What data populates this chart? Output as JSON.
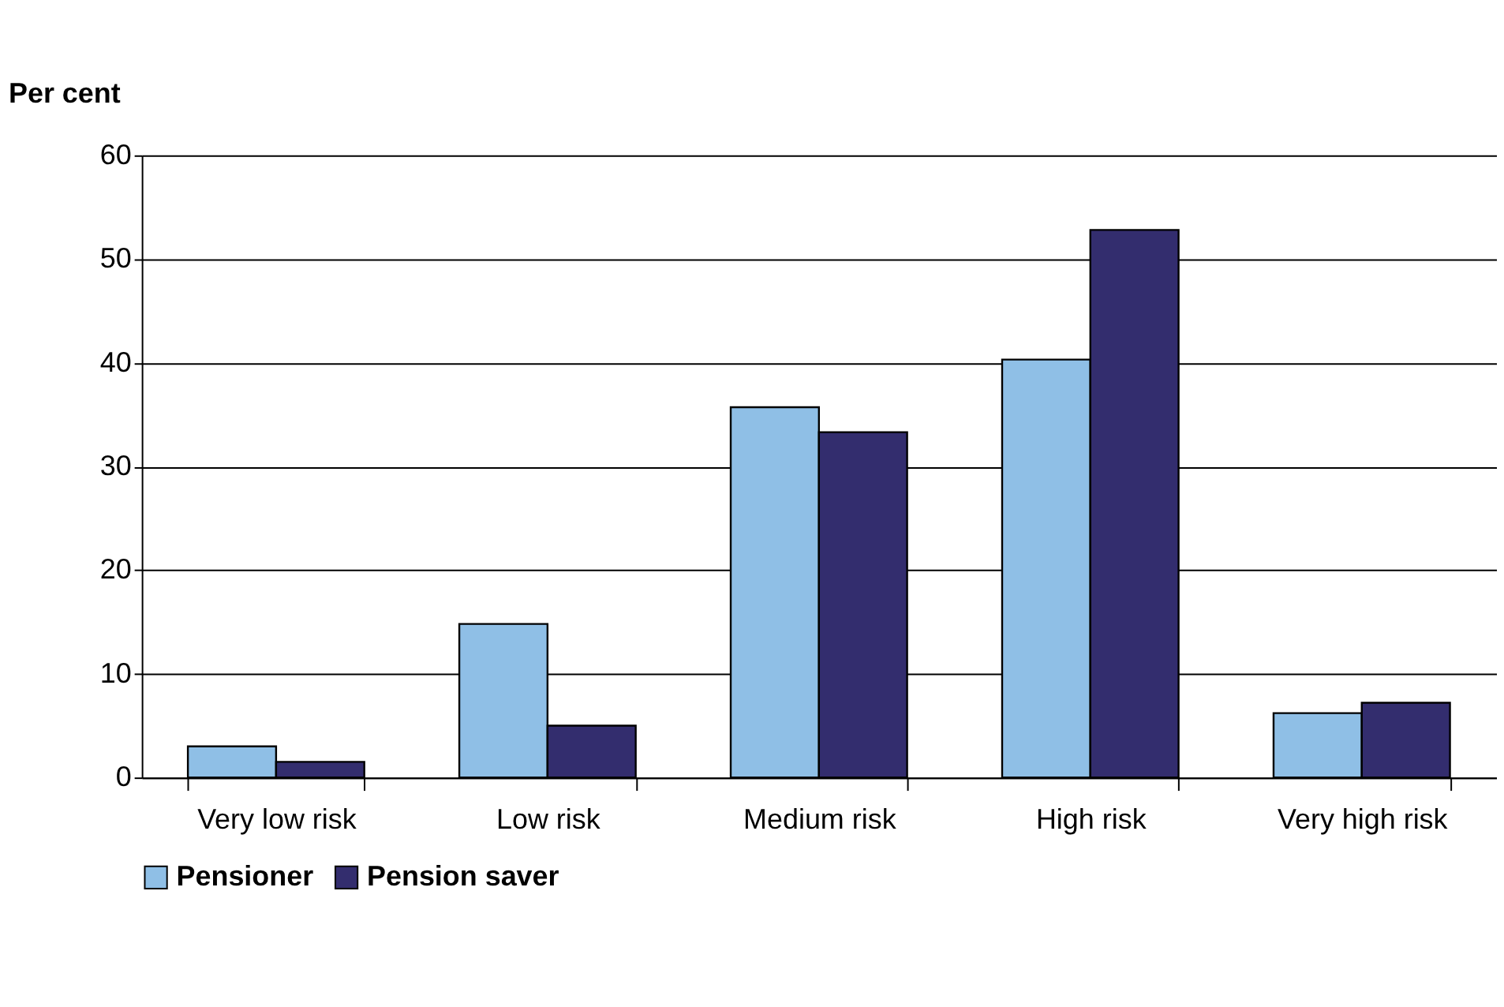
{
  "chart_data": {
    "type": "bar",
    "ylabel": "Per cent",
    "categories": [
      "Very low risk",
      "Low risk",
      "Medium risk",
      "High risk",
      "Very high risk"
    ],
    "series": [
      {
        "name": "Pensioner",
        "color": "#8fbfe6",
        "values": [
          3.0,
          14.8,
          35.7,
          40.3,
          6.2
        ]
      },
      {
        "name": "Pension saver",
        "color": "#332d6e",
        "values": [
          1.5,
          5.0,
          33.3,
          52.8,
          7.2
        ]
      }
    ],
    "ylim": [
      0,
      60
    ],
    "yticks": [
      0,
      10,
      20,
      30,
      40,
      50,
      60
    ],
    "grid": "y",
    "legend": "bottom"
  }
}
